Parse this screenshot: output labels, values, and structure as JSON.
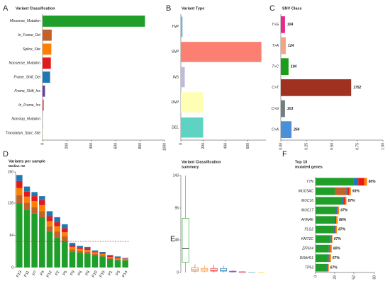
{
  "chart_data": [
    {
      "panel": "A",
      "type": "hbar",
      "title": "Variant Classification",
      "categories": [
        "Missense_Mutation",
        "In_Frame_Del",
        "Splice_Site",
        "Nonsense_Mutation",
        "Frame_Shift_Del",
        "Frame_Shift_Ins",
        "In_Frame_Ins",
        "Nonstop_Mutation",
        "Translation_Start_Site"
      ],
      "values": [
        840,
        75,
        72,
        68,
        62,
        20,
        10,
        2,
        2
      ],
      "colors": [
        "#1f9e2a",
        "#c0622a",
        "#ff7f00",
        "#e31a1c",
        "#1f78b4",
        "#6a3d9a",
        "#e0506a",
        "#a6cee3",
        "#ffe680"
      ],
      "xlim": [
        0,
        1000
      ],
      "xticks": [
        0,
        200,
        400,
        600,
        800,
        1000
      ]
    },
    {
      "panel": "B",
      "type": "hbar",
      "title": "Variant Type",
      "categories": [
        "TNP",
        "SNP",
        "INS",
        "DNP",
        "DEL"
      ],
      "values": [
        15,
        720,
        35,
        200,
        200
      ],
      "colors": [
        "#6fb8d8",
        "#fb8072",
        "#bebada",
        "#ffffb3",
        "#5fd3c3"
      ],
      "xlim": [
        0,
        760
      ],
      "xticks": [
        0,
        200,
        400,
        600
      ]
    },
    {
      "panel": "C",
      "type": "hbar",
      "title": "SNV Class",
      "categories": [
        "T>G",
        "T>A",
        "T>C",
        "C>T",
        "C>G",
        "C>A"
      ],
      "values": [
        0.041,
        0.049,
        0.076,
        0.689,
        0.041,
        0.105
      ],
      "counts": [
        104,
        124,
        194,
        1752,
        103,
        266
      ],
      "colors": [
        "#e7298a",
        "#f4a582",
        "#1a9e1a",
        "#a03020",
        "#708080",
        "#4a90d9"
      ],
      "xlim": [
        0,
        1
      ],
      "xticks": [
        {
          "value": 0,
          "label": "0.00"
        },
        {
          "value": 0.25,
          "label": "0.25"
        },
        {
          "value": 0.5,
          "label": "0.50"
        },
        {
          "value": 0.75,
          "label": "0.75"
        },
        {
          "value": 1,
          "label": "1.00"
        }
      ]
    },
    {
      "panel": "D",
      "type": "stacked_bar",
      "title": "Variants per sample",
      "subtitle": "Median: 52",
      "median": 52,
      "categories": [
        "P13",
        "P11",
        "P7",
        "P4",
        "P12",
        "P2",
        "P5",
        "P9",
        "P6",
        "P8",
        "P10",
        "P15",
        "P1",
        "P3",
        "P14"
      ],
      "series": [
        {
          "name": "Missense_Mutation",
          "color": "#1f9e2a",
          "values": [
            128,
            115,
            108,
            100,
            72,
            60,
            52,
            32,
            30,
            28,
            24,
            22,
            17,
            15,
            14
          ]
        },
        {
          "name": "In_Frame_Del",
          "color": "#c0622a",
          "values": [
            16,
            14,
            12,
            12,
            10,
            12,
            10,
            4,
            3,
            3,
            3,
            2,
            2,
            1,
            1
          ]
        },
        {
          "name": "Splice_Site",
          "color": "#ff7f00",
          "values": [
            14,
            12,
            12,
            12,
            10,
            10,
            8,
            5,
            4,
            4,
            3,
            3,
            2,
            2,
            2
          ]
        },
        {
          "name": "Nonsense_Mutation",
          "color": "#e31a1c",
          "values": [
            14,
            10,
            10,
            10,
            10,
            8,
            8,
            4,
            3,
            3,
            2,
            2,
            2,
            2,
            1
          ]
        },
        {
          "name": "Frame_Shift_Del",
          "color": "#1f78b4",
          "values": [
            12,
            10,
            8,
            8,
            10,
            10,
            8,
            4,
            3,
            3,
            2,
            2,
            2,
            2,
            1
          ]
        }
      ],
      "ylim": [
        0,
        190
      ],
      "yticks": [
        0,
        64,
        128,
        190
      ]
    },
    {
      "panel": "E",
      "type": "box",
      "title": [
        "Variant Classification",
        "summary"
      ],
      "box": [
        [
          0,
          15,
          35,
          80,
          143
        ],
        [
          0,
          2,
          4,
          7,
          12
        ],
        [
          0,
          2,
          4,
          6,
          10
        ],
        [
          0,
          2,
          3,
          6,
          11
        ],
        [
          0,
          2,
          3,
          6,
          10
        ],
        [
          0,
          1,
          1,
          2,
          3
        ],
        [
          0,
          0,
          1,
          1,
          2
        ],
        [
          0,
          0,
          0,
          0,
          1
        ],
        [
          0,
          0,
          0,
          0,
          1
        ]
      ],
      "colors": [
        "#1f9e2a",
        "#c0622a",
        "#ff7f00",
        "#e31a1c",
        "#1f78b4",
        "#6a3d9a",
        "#e0506a",
        "#a6cee3",
        "#ffe680"
      ],
      "ylim": [
        0,
        143
      ],
      "yticks": [
        0,
        48,
        95,
        143
      ]
    },
    {
      "panel": "F",
      "type": "stacked_hbar",
      "title": [
        "Top 10",
        "mutated genes"
      ],
      "categories": [
        "TTN",
        "MUC5AC",
        "MUC16",
        "MUC17",
        "AHNAK",
        "FLG2",
        "KMT2C",
        "ZFHX4",
        "DNAH11",
        "TP53"
      ],
      "frequency_labels": [
        "80%",
        "93%",
        "87%",
        "67%",
        "80%",
        "87%",
        "67%",
        "60%",
        "67%",
        "67%"
      ],
      "series": [
        {
          "name": "Missense_Mutation",
          "color": "#1f9e2a",
          "values": [
            52,
            26,
            36,
            28,
            26,
            25,
            20,
            18,
            17,
            15
          ]
        },
        {
          "name": "In_Frame_Del",
          "color": "#c0622a",
          "values": [
            0,
            16,
            0,
            0,
            0,
            0,
            0,
            0,
            0,
            0
          ]
        },
        {
          "name": "Frame_Shift_Del",
          "color": "#1f78b4",
          "values": [
            6,
            2,
            2,
            1,
            1,
            1,
            1,
            1,
            1,
            1
          ]
        },
        {
          "name": "Nonsense_Mutation",
          "color": "#e31a1c",
          "values": [
            8,
            2,
            2,
            1,
            1,
            1,
            1,
            1,
            1,
            1
          ]
        },
        {
          "name": "Splice_Site",
          "color": "#ff7f00",
          "values": [
            4,
            2,
            2,
            2,
            2,
            2,
            1,
            2,
            2,
            1
          ]
        }
      ],
      "xlim": [
        0,
        80
      ],
      "xticks": [
        0,
        26,
        52,
        80
      ]
    }
  ]
}
